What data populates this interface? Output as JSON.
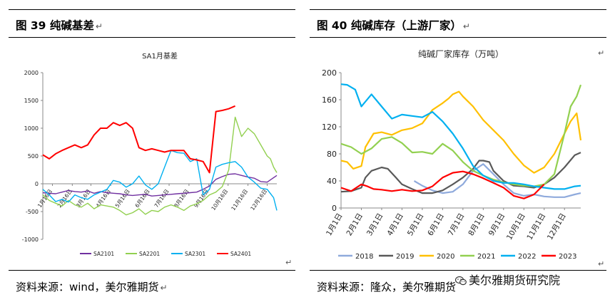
{
  "left_panel": {
    "figure_title": "图 39  纯碱基差",
    "source": "资料来源：wind，美尔雅期货"
  },
  "right_panel": {
    "figure_title": "图 40   纯碱库存（上游厂家）",
    "source": "资料来源：隆众，美尔雅期货"
  },
  "watermark": "美尔雅期货研究院",
  "paragraph_mark": "↵",
  "chart_data": [
    {
      "type": "line",
      "title": "SA1月基差",
      "ylim": [
        -1000,
        2000
      ],
      "yticks": [
        -1000,
        -500,
        0,
        500,
        1000,
        1500,
        2000
      ],
      "xlim": [
        0,
        365
      ],
      "x_tick_labels": [
        {
          "x": 15,
          "label": "1月16日"
        },
        {
          "x": 46,
          "label": "2月16日"
        },
        {
          "x": 75,
          "label": "3月16日"
        },
        {
          "x": 106,
          "label": "4月16日"
        },
        {
          "x": 136,
          "label": "5月16日"
        },
        {
          "x": 167,
          "label": "6月16日"
        },
        {
          "x": 197,
          "label": "7月16日"
        },
        {
          "x": 228,
          "label": "8月16日"
        },
        {
          "x": 259,
          "label": "9月16日"
        },
        {
          "x": 289,
          "label": "10月16日"
        },
        {
          "x": 320,
          "label": "11月16日"
        },
        {
          "x": 350,
          "label": "12月16日"
        }
      ],
      "grid": false,
      "legend_position": "bottom",
      "series": [
        {
          "name": "SA2101",
          "color": "#7030a0",
          "x": [
            0,
            10,
            20,
            30,
            40,
            50,
            60,
            70,
            80,
            90,
            100,
            110,
            120,
            130,
            140,
            150,
            160,
            170,
            180,
            190,
            200,
            210,
            220,
            230,
            240,
            250,
            260,
            270,
            280,
            290,
            300,
            310,
            320,
            330,
            340,
            350,
            360,
            365
          ],
          "y": [
            -160,
            -170,
            -180,
            -150,
            -120,
            -140,
            -150,
            -130,
            -170,
            -140,
            -160,
            -170,
            -180,
            -200,
            -210,
            -200,
            -190,
            -220,
            -210,
            -200,
            -190,
            -180,
            -170,
            -160,
            -150,
            -100,
            -40,
            80,
            130,
            170,
            180,
            150,
            120,
            100,
            40,
            30,
            110,
            150
          ]
        },
        {
          "name": "SA2201",
          "color": "#92d050",
          "x": [
            0,
            10,
            20,
            30,
            40,
            50,
            60,
            70,
            80,
            90,
            100,
            110,
            120,
            130,
            140,
            150,
            160,
            170,
            180,
            190,
            200,
            210,
            220,
            230,
            240,
            250,
            260,
            270,
            280,
            290,
            300,
            310,
            320,
            330,
            340,
            350,
            355,
            360,
            365
          ],
          "y": [
            -200,
            -300,
            -350,
            -400,
            -300,
            -380,
            -420,
            -350,
            -450,
            -380,
            -400,
            -420,
            -480,
            -560,
            -520,
            -450,
            -550,
            -480,
            -500,
            -420,
            -380,
            -420,
            -480,
            -400,
            -360,
            -300,
            -200,
            -150,
            -50,
            250,
            1200,
            850,
            1000,
            900,
            700,
            500,
            450,
            300,
            200
          ]
        },
        {
          "name": "SA2301",
          "color": "#00b0f0",
          "x": [
            0,
            10,
            20,
            30,
            40,
            50,
            60,
            70,
            80,
            90,
            100,
            110,
            120,
            130,
            140,
            150,
            160,
            170,
            180,
            190,
            200,
            210,
            220,
            230,
            240,
            250,
            260,
            270,
            280,
            290,
            300,
            310,
            320,
            330,
            340,
            350,
            360,
            365
          ],
          "y": [
            -100,
            -200,
            -320,
            -280,
            -330,
            -200,
            -250,
            -280,
            -200,
            -150,
            -100,
            60,
            30,
            -60,
            0,
            140,
            -20,
            -100,
            0,
            300,
            600,
            560,
            550,
            400,
            450,
            -200,
            -100,
            300,
            350,
            380,
            400,
            300,
            120,
            30,
            -80,
            -100,
            -250,
            -480
          ]
        },
        {
          "name": "SA2401",
          "color": "#ff0000",
          "x": [
            0,
            10,
            20,
            30,
            40,
            50,
            60,
            70,
            80,
            90,
            100,
            110,
            120,
            130,
            140,
            150,
            160,
            170,
            180,
            190,
            200,
            210,
            220,
            230,
            240,
            250,
            260,
            270,
            280,
            290,
            300
          ],
          "y": [
            520,
            450,
            540,
            600,
            650,
            700,
            650,
            700,
            880,
            1000,
            1000,
            1100,
            1050,
            1100,
            1000,
            650,
            600,
            630,
            600,
            570,
            600,
            600,
            600,
            450,
            430,
            400,
            200,
            1300,
            1320,
            1350,
            1400
          ]
        }
      ]
    },
    {
      "type": "line",
      "title": "纯碱厂家库存（万吨）",
      "ylim": [
        0,
        200
      ],
      "yticks": [
        0,
        40,
        80,
        120,
        160,
        200
      ],
      "xlim": [
        0,
        11.8
      ],
      "categories": [
        "1月1日",
        "2月1日",
        "3月1日",
        "4月1日",
        "5月1日",
        "6月1日",
        "7月1日",
        "8月1日",
        "9月1日",
        "10月1日",
        "11月1日",
        "12月1日"
      ],
      "grid": false,
      "legend_position": "bottom",
      "series": [
        {
          "name": "2018",
          "color": "#8faadc",
          "x": [
            3.6,
            4.0,
            4.5,
            5.0,
            5.5,
            6.0,
            6.5,
            7.0,
            7.5,
            8.0,
            8.5,
            9.0,
            9.5,
            10.0,
            10.5,
            11.0,
            11.5,
            11.8
          ],
          "y": [
            40,
            33,
            26,
            22,
            24,
            35,
            55,
            65,
            50,
            35,
            22,
            18,
            20,
            17,
            16,
            16,
            20,
            22
          ]
        },
        {
          "name": "2019",
          "color": "#595959",
          "x": [
            0.0,
            0.5,
            1.0,
            1.2,
            1.5,
            2.0,
            2.3,
            2.7,
            3.0,
            3.5,
            4.0,
            4.5,
            5.0,
            5.5,
            6.0,
            6.5,
            6.8,
            7.0,
            7.3,
            7.5,
            8.0,
            8.5,
            9.0,
            9.5,
            10.0,
            10.5,
            11.0,
            11.5,
            11.8
          ],
          "y": [
            24,
            25,
            30,
            45,
            55,
            60,
            58,
            45,
            35,
            28,
            22,
            22,
            26,
            35,
            45,
            58,
            70,
            70,
            68,
            55,
            40,
            33,
            32,
            30,
            35,
            45,
            60,
            78,
            82
          ]
        },
        {
          "name": "2020",
          "color": "#ffc000",
          "x": [
            0.0,
            0.3,
            0.6,
            1.0,
            1.2,
            1.6,
            2.0,
            2.5,
            3.0,
            3.5,
            4.0,
            4.5,
            5.0,
            5.3,
            5.5,
            5.8,
            6.0,
            6.5,
            7.0,
            7.5,
            8.0,
            8.5,
            9.0,
            9.5,
            10.0,
            10.5,
            11.0,
            11.3,
            11.6,
            11.8
          ],
          "y": [
            70,
            68,
            58,
            62,
            90,
            110,
            112,
            108,
            115,
            118,
            125,
            145,
            155,
            162,
            168,
            172,
            165,
            150,
            130,
            115,
            100,
            80,
            63,
            52,
            60,
            80,
            110,
            128,
            140,
            100
          ]
        },
        {
          "name": "2021",
          "color": "#92d050",
          "x": [
            0.0,
            0.5,
            1.0,
            1.5,
            2.0,
            2.5,
            3.0,
            3.5,
            4.0,
            4.5,
            5.0,
            5.5,
            6.0,
            6.5,
            7.0,
            7.5,
            8.0,
            8.5,
            9.0,
            9.5,
            10.0,
            10.5,
            11.0,
            11.3,
            11.6,
            11.8
          ],
          "y": [
            95,
            90,
            80,
            88,
            102,
            105,
            96,
            82,
            83,
            80,
            95,
            85,
            68,
            55,
            48,
            42,
            38,
            35,
            33,
            32,
            35,
            50,
            110,
            150,
            165,
            182
          ]
        },
        {
          "name": "2022",
          "color": "#00b0f0",
          "x": [
            0.0,
            0.3,
            0.7,
            1.0,
            1.5,
            2.0,
            2.5,
            3.0,
            3.5,
            4.0,
            4.5,
            5.0,
            5.5,
            6.0,
            6.5,
            7.0,
            7.5,
            8.0,
            8.5,
            9.0,
            9.5,
            10.0,
            10.5,
            11.0,
            11.5,
            11.8
          ],
          "y": [
            183,
            182,
            175,
            150,
            168,
            150,
            132,
            138,
            136,
            134,
            142,
            128,
            110,
            88,
            62,
            48,
            40,
            37,
            37,
            35,
            32,
            30,
            28,
            28,
            32,
            33
          ]
        },
        {
          "name": "2023",
          "color": "#ff0000",
          "x": [
            0.0,
            0.5,
            1.0,
            1.3,
            1.6,
            2.0,
            2.5,
            3.0,
            3.5,
            4.0,
            4.5,
            5.0,
            5.5,
            6.0,
            6.5,
            7.0,
            7.5,
            8.0,
            8.5,
            9.0,
            9.5,
            10.0
          ],
          "y": [
            30,
            25,
            35,
            32,
            28,
            27,
            25,
            27,
            25,
            26,
            32,
            45,
            52,
            54,
            50,
            44,
            37,
            30,
            18,
            14,
            20,
            35
          ]
        }
      ]
    }
  ]
}
